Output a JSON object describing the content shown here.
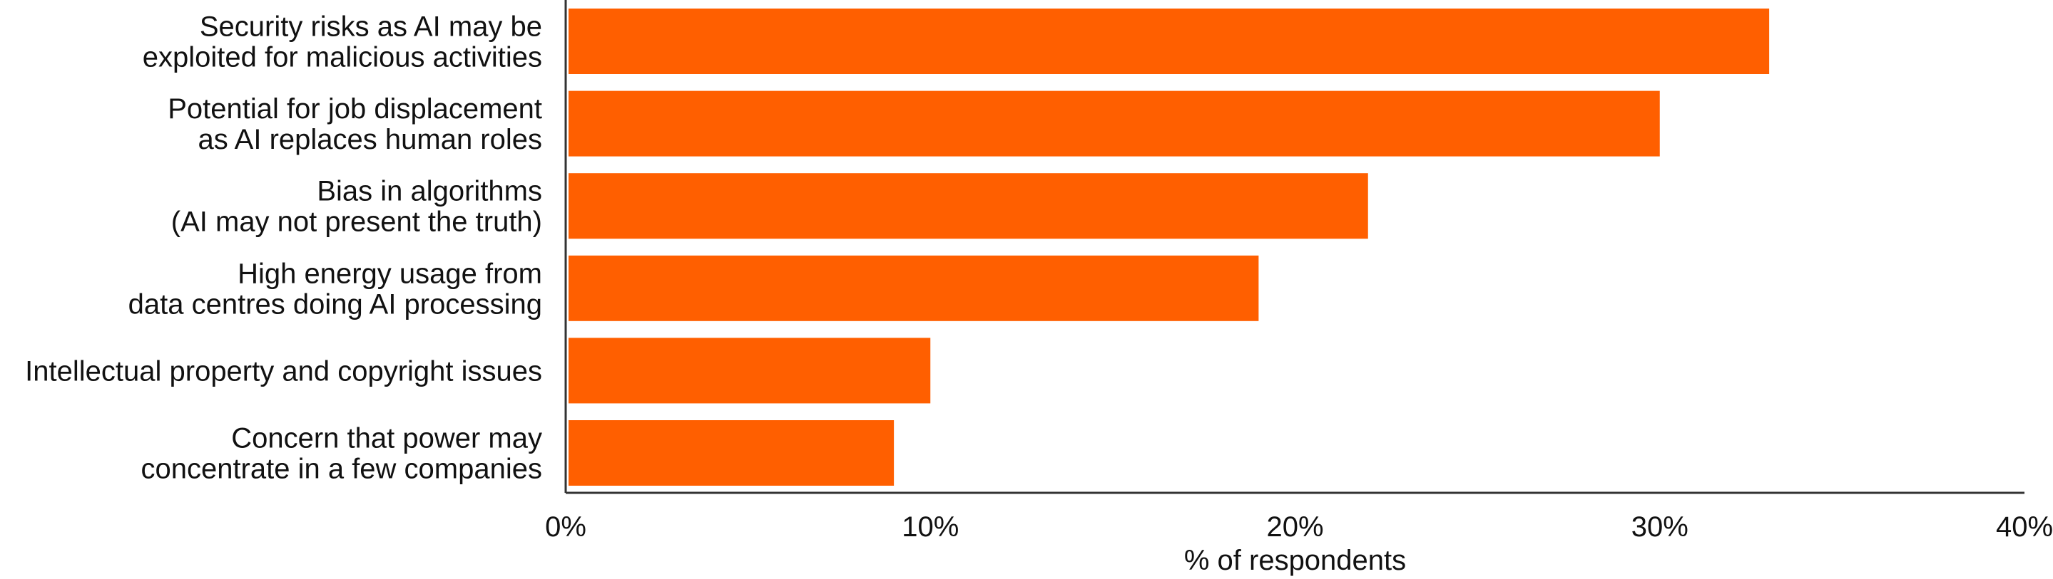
{
  "chart_data": {
    "type": "bar",
    "orientation": "horizontal",
    "categories": [
      [
        "Security risks as AI may be",
        "exploited for malicious activities"
      ],
      [
        "Potential for job displacement",
        "as AI replaces human roles"
      ],
      [
        "Bias in algorithms",
        "(AI may not present the truth)"
      ],
      [
        "High energy usage from",
        "data centres doing AI processing"
      ],
      [
        "Intellectual property and copyright issues"
      ],
      [
        "Concern that power may",
        "concentrate in a few companies"
      ]
    ],
    "values": [
      33,
      30,
      22,
      19,
      10,
      9
    ],
    "xlim": [
      0,
      40
    ],
    "xticks": [
      "0%",
      "10%",
      "20%",
      "30%",
      "40%"
    ],
    "xlabel": "% of respondents",
    "ylabel": "",
    "title": "",
    "grid": false,
    "bar_color": "#ff5f00",
    "axis_color": "#333333"
  }
}
